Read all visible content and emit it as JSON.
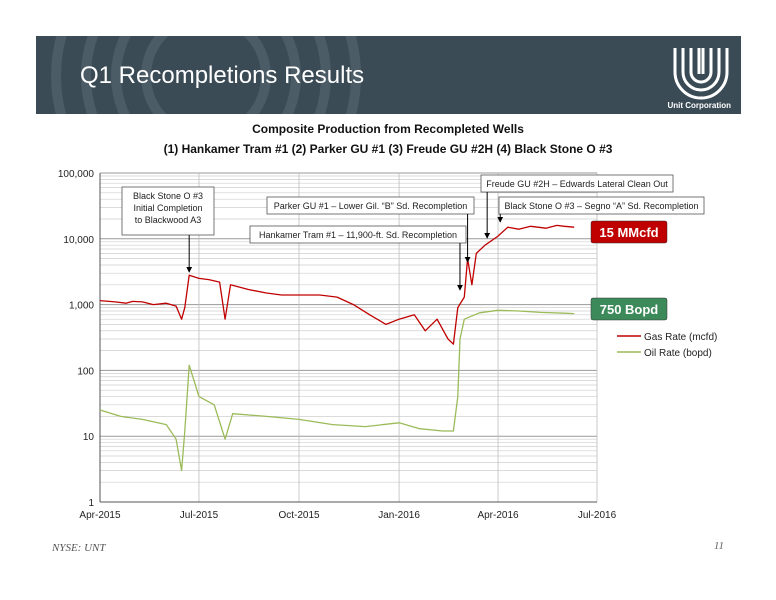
{
  "slide": {
    "title": "Q1 Recompletions Results",
    "logo_text": "Unit Corporation",
    "footer_left": "NYSE: UNT",
    "page_number": "11"
  },
  "colors": {
    "banner": "#3a4b56",
    "gas": "#c00000",
    "oil": "#9bbb59",
    "gas_callout_bg": "#c00000",
    "oil_callout_bg": "#3c8a5a"
  },
  "chart_data": {
    "type": "line",
    "title": "Composite Production from Recompleted Wells",
    "subtitle": "(1) Hankamer Tram #1    (2) Parker GU #1    (3) Freude GU #2H    (4) Black Stone O #3",
    "y_scale": "log",
    "ylim": [
      1,
      100000
    ],
    "y_ticks": [
      {
        "value": 1,
        "label": "1"
      },
      {
        "value": 10,
        "label": "10"
      },
      {
        "value": 100,
        "label": "100"
      },
      {
        "value": 1000,
        "label": "1,000"
      },
      {
        "value": 10000,
        "label": "10,000"
      },
      {
        "value": 100000,
        "label": "100,000"
      }
    ],
    "xlim": [
      "2015-04-01",
      "2016-07-01"
    ],
    "x_ticks": [
      {
        "value": "2015-04-01",
        "label": "Apr-2015"
      },
      {
        "value": "2015-07-01",
        "label": "Jul-2015"
      },
      {
        "value": "2015-10-01",
        "label": "Oct-2015"
      },
      {
        "value": "2016-01-01",
        "label": "Jan-2016"
      },
      {
        "value": "2016-04-01",
        "label": "Apr-2016"
      },
      {
        "value": "2016-07-01",
        "label": "Jul-2016"
      }
    ],
    "legend_position": "right",
    "series": [
      {
        "name": "Gas Rate (mcfd)",
        "color": "#c00000",
        "points": [
          [
            "2015-04-01",
            1150
          ],
          [
            "2015-04-15",
            1100
          ],
          [
            "2015-04-25",
            1050
          ],
          [
            "2015-05-01",
            1120
          ],
          [
            "2015-05-10",
            1100
          ],
          [
            "2015-05-20",
            1000
          ],
          [
            "2015-06-01",
            1050
          ],
          [
            "2015-06-10",
            950
          ],
          [
            "2015-06-15",
            600
          ],
          [
            "2015-06-18",
            900
          ],
          [
            "2015-06-22",
            2800
          ],
          [
            "2015-07-01",
            2500
          ],
          [
            "2015-07-10",
            2400
          ],
          [
            "2015-07-20",
            2200
          ],
          [
            "2015-07-25",
            600
          ],
          [
            "2015-07-30",
            2000
          ],
          [
            "2015-08-15",
            1700
          ],
          [
            "2015-09-01",
            1500
          ],
          [
            "2015-09-15",
            1400
          ],
          [
            "2015-10-01",
            1400
          ],
          [
            "2015-10-20",
            1400
          ],
          [
            "2015-11-05",
            1300
          ],
          [
            "2015-11-20",
            1000
          ],
          [
            "2015-12-05",
            700
          ],
          [
            "2015-12-20",
            500
          ],
          [
            "2016-01-01",
            600
          ],
          [
            "2016-01-15",
            700
          ],
          [
            "2016-01-25",
            400
          ],
          [
            "2016-02-05",
            600
          ],
          [
            "2016-02-15",
            300
          ],
          [
            "2016-02-20",
            250
          ],
          [
            "2016-02-24",
            900
          ],
          [
            "2016-03-01",
            1300
          ],
          [
            "2016-03-04",
            5000
          ],
          [
            "2016-03-08",
            2000
          ],
          [
            "2016-03-12",
            6000
          ],
          [
            "2016-03-20",
            8000
          ],
          [
            "2016-04-01",
            11000
          ],
          [
            "2016-04-10",
            15000
          ],
          [
            "2016-04-20",
            14000
          ],
          [
            "2016-05-01",
            15500
          ],
          [
            "2016-05-15",
            14500
          ],
          [
            "2016-05-25",
            16000
          ],
          [
            "2016-06-01",
            15500
          ],
          [
            "2016-06-10",
            15000
          ]
        ]
      },
      {
        "name": "Oil Rate (bopd)",
        "color": "#9bbb59",
        "points": [
          [
            "2015-04-01",
            25
          ],
          [
            "2015-04-20",
            20
          ],
          [
            "2015-05-10",
            18
          ],
          [
            "2015-06-01",
            15
          ],
          [
            "2015-06-10",
            9
          ],
          [
            "2015-06-15",
            3
          ],
          [
            "2015-06-18",
            12
          ],
          [
            "2015-06-22",
            120
          ],
          [
            "2015-07-01",
            40
          ],
          [
            "2015-07-15",
            30
          ],
          [
            "2015-07-25",
            9
          ],
          [
            "2015-08-01",
            22
          ],
          [
            "2015-09-01",
            20
          ],
          [
            "2015-10-01",
            18
          ],
          [
            "2015-11-01",
            15
          ],
          [
            "2015-12-01",
            14
          ],
          [
            "2016-01-01",
            16
          ],
          [
            "2016-01-20",
            13
          ],
          [
            "2016-02-10",
            12
          ],
          [
            "2016-02-20",
            12
          ],
          [
            "2016-02-24",
            40
          ],
          [
            "2016-02-26",
            300
          ],
          [
            "2016-03-01",
            600
          ],
          [
            "2016-03-15",
            750
          ],
          [
            "2016-04-01",
            820
          ],
          [
            "2016-04-20",
            800
          ],
          [
            "2016-05-10",
            760
          ],
          [
            "2016-06-01",
            740
          ],
          [
            "2016-06-10",
            730
          ]
        ]
      }
    ],
    "annotations": [
      {
        "text": "Black Stone O #3\nInitial Completion\nto Blackwood A3",
        "date": "2015-06-22"
      },
      {
        "text": "Parker GU #1 – Lower Gil. “B” Sd. Recompletion",
        "date": "2016-03-04"
      },
      {
        "text": "Hankamer Tram #1 – 11,900-ft. Sd. Recompletion",
        "date": "2016-02-26"
      },
      {
        "text": "Freude GU #2H – Edwards Lateral Clean Out",
        "date": "2016-03-22"
      },
      {
        "text": "Black Stone O #3 – Segno “A” Sd. Recompletion",
        "date": "2016-04-03"
      }
    ],
    "callouts": [
      {
        "text": "15 MMcfd",
        "series": "gas"
      },
      {
        "text": "750 Bopd",
        "series": "oil"
      }
    ]
  }
}
